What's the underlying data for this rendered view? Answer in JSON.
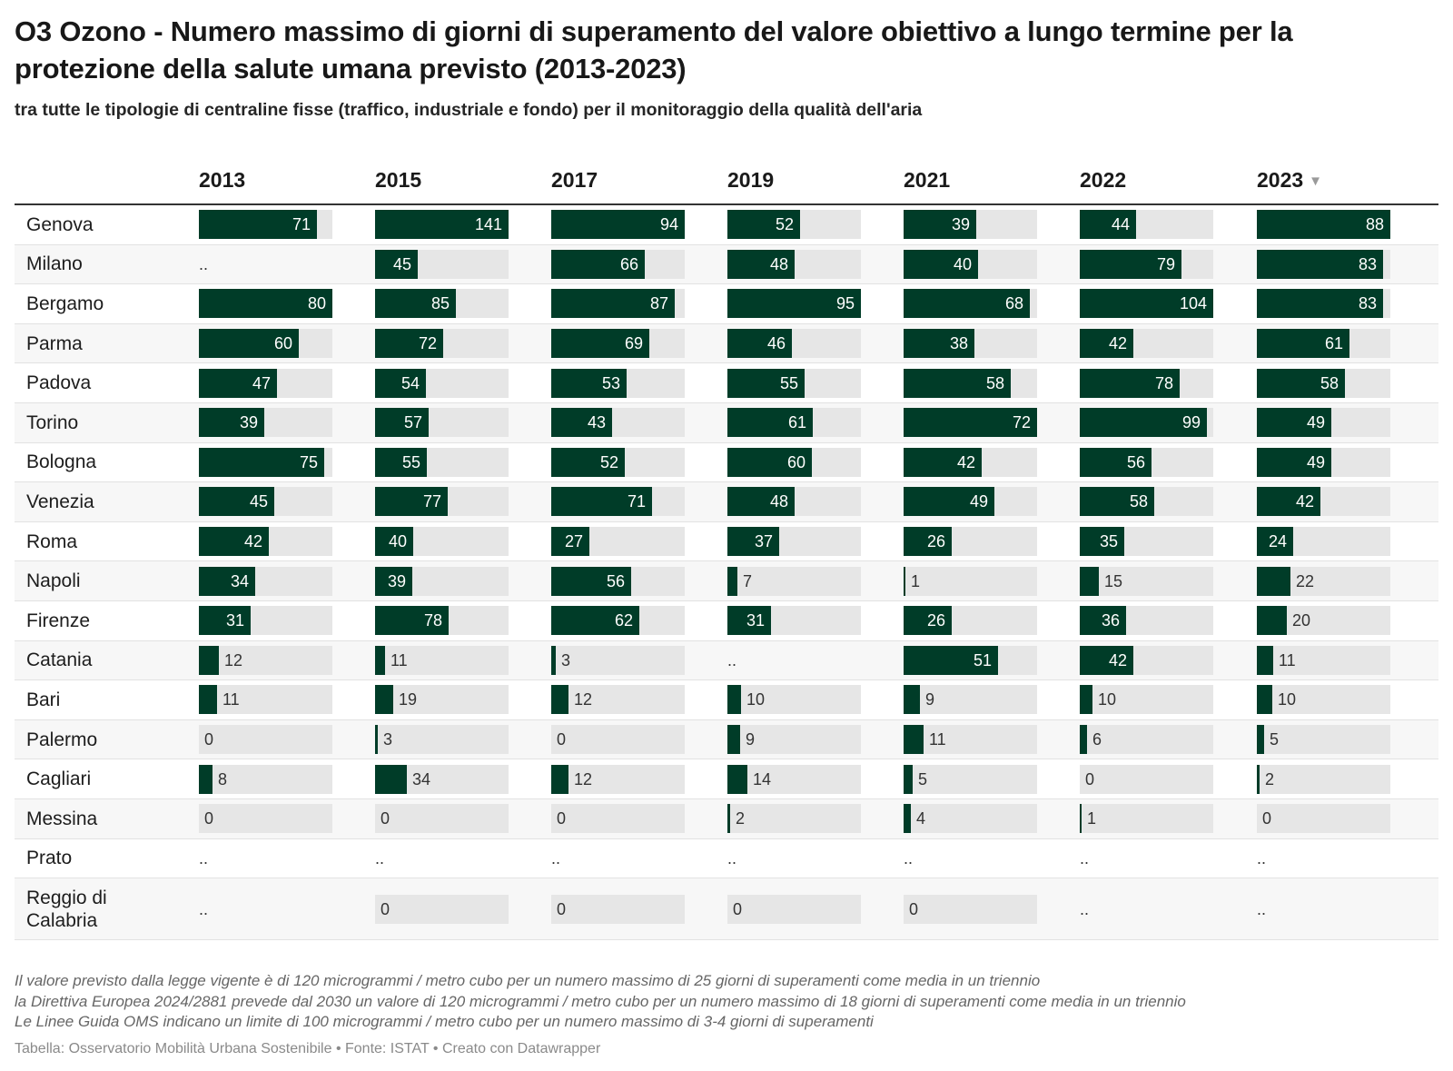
{
  "title": "O3 Ozono - Numero massimo di giorni di superamento del valore obiettivo a lungo termine per la protezione della salute umana previsto (2013-2023)",
  "subtitle": "tra tutte le tipologie di centraline fisse (traffico, industriale e fondo) per il monitoraggio della qualità dell'aria",
  "notes": [
    "Il valore previsto dalla legge vigente è di 120 microgrammi / metro cubo per un numero massimo di 25 giorni di superamenti come media in un triennio",
    "la Direttiva Europea 2024/2881 prevede dal 2030 un valore di 120 microgrammi / metro cubo per un numero massimo di 18 giorni di superamenti come media in un triennio",
    "Le Linee Guida OMS indicano un limite di 100 microgrammi / metro cubo per un numero massimo di 3-4 giorni di superamenti"
  ],
  "footer": "Tabella: Osservatorio Mobilità Urbana Sostenibile • Fonte: ISTAT • Creato con Datawrapper",
  "sort_icon": "sort-descending-icon",
  "colors": {
    "bar": "#003c28",
    "track": "#e6e6e6"
  },
  "chart_data": {
    "type": "table",
    "sorted_by": "2023",
    "sort_direction": "descending",
    "missing_value_label": "..",
    "columns": [
      "2013",
      "2015",
      "2017",
      "2019",
      "2021",
      "2022",
      "2023"
    ],
    "column_max": {
      "2013": 80,
      "2015": 141,
      "2017": 94,
      "2019": 95,
      "2021": 72,
      "2022": 104,
      "2023": 88
    },
    "rows": [
      {
        "city": "Genova",
        "values": [
          71,
          141,
          94,
          52,
          39,
          44,
          88
        ]
      },
      {
        "city": "Milano",
        "values": [
          null,
          45,
          66,
          48,
          40,
          79,
          83
        ]
      },
      {
        "city": "Bergamo",
        "values": [
          80,
          85,
          87,
          95,
          68,
          104,
          83
        ]
      },
      {
        "city": "Parma",
        "values": [
          60,
          72,
          69,
          46,
          38,
          42,
          61
        ]
      },
      {
        "city": "Padova",
        "values": [
          47,
          54,
          53,
          55,
          58,
          78,
          58
        ]
      },
      {
        "city": "Torino",
        "values": [
          39,
          57,
          43,
          61,
          72,
          99,
          49
        ]
      },
      {
        "city": "Bologna",
        "values": [
          75,
          55,
          52,
          60,
          42,
          56,
          49
        ]
      },
      {
        "city": "Venezia",
        "values": [
          45,
          77,
          71,
          48,
          49,
          58,
          42
        ]
      },
      {
        "city": "Roma",
        "values": [
          42,
          40,
          27,
          37,
          26,
          35,
          24
        ]
      },
      {
        "city": "Napoli",
        "values": [
          34,
          39,
          56,
          7,
          1,
          15,
          22
        ]
      },
      {
        "city": "Firenze",
        "values": [
          31,
          78,
          62,
          31,
          26,
          36,
          20
        ]
      },
      {
        "city": "Catania",
        "values": [
          12,
          11,
          3,
          null,
          51,
          42,
          11
        ]
      },
      {
        "city": "Bari",
        "values": [
          11,
          19,
          12,
          10,
          9,
          10,
          10
        ]
      },
      {
        "city": "Palermo",
        "values": [
          0,
          3,
          0,
          9,
          11,
          6,
          5
        ]
      },
      {
        "city": "Cagliari",
        "values": [
          8,
          34,
          12,
          14,
          5,
          0,
          2
        ]
      },
      {
        "city": "Messina",
        "values": [
          0,
          0,
          0,
          2,
          4,
          1,
          0
        ]
      },
      {
        "city": "Prato",
        "values": [
          null,
          null,
          null,
          null,
          null,
          null,
          null
        ]
      },
      {
        "city": "Reggio di Calabria",
        "values": [
          null,
          0,
          0,
          0,
          0,
          null,
          null
        ]
      }
    ]
  }
}
